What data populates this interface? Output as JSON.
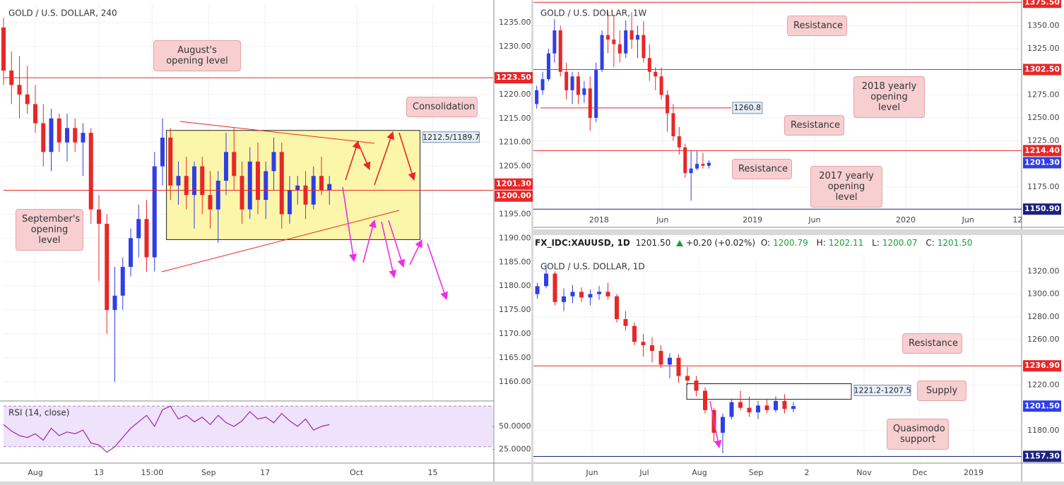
{
  "chart_data": [
    {
      "type": "candlestick",
      "title": "GOLD / U.S. DOLLAR, 240",
      "x": [
        -4,
        -3,
        -2,
        -1,
        0,
        1,
        2,
        3,
        4,
        5,
        6,
        7,
        8,
        9,
        10,
        11,
        12,
        13,
        14,
        15,
        16,
        17,
        18,
        19,
        20,
        21,
        22,
        23,
        24,
        25,
        26,
        27,
        28,
        29,
        30,
        31,
        32,
        33,
        34,
        35,
        36,
        37
      ],
      "open": [
        1234,
        1225,
        1222,
        1220,
        1218,
        1214,
        1208,
        1215,
        1210,
        1213,
        1210,
        1212,
        1196,
        1193,
        1175,
        1178,
        1184,
        1190,
        1194,
        1186,
        1205,
        1211,
        1201,
        1203,
        1199,
        1205,
        1199,
        1196,
        1202,
        1208,
        1203,
        1196,
        1206,
        1198,
        1204,
        1208,
        1195,
        1200,
        1201,
        1197,
        1203,
        1200
      ],
      "high": [
        1236,
        1229,
        1228,
        1226,
        1222,
        1218,
        1217,
        1216,
        1216,
        1215,
        1214,
        1213,
        1199,
        1195,
        1184,
        1186,
        1192,
        1197,
        1198,
        1208,
        1215,
        1213,
        1206,
        1207,
        1206,
        1207,
        1204,
        1204,
        1212,
        1213,
        1206,
        1209,
        1210,
        1206,
        1211,
        1210,
        1203,
        1203,
        1204,
        1205,
        1207,
        1203
      ],
      "low": [
        1222,
        1218,
        1215,
        1216,
        1212,
        1205,
        1204,
        1208,
        1206,
        1208,
        1203,
        1193,
        1181,
        1170,
        1160,
        1175,
        1182,
        1186,
        1183,
        1183,
        1201,
        1198,
        1197,
        1196,
        1192,
        1195,
        1192,
        1189,
        1199,
        1200,
        1193,
        1194,
        1195,
        1194,
        1200,
        1192,
        1193,
        1197,
        1194,
        1196,
        1199,
        1197
      ],
      "close": [
        1225,
        1222,
        1220,
        1218,
        1214,
        1208,
        1215,
        1210,
        1213,
        1210,
        1212,
        1196,
        1193,
        1175,
        1178,
        1184,
        1190,
        1194,
        1186,
        1205,
        1211,
        1201,
        1203,
        1199,
        1205,
        1199,
        1196,
        1202,
        1208,
        1203,
        1196,
        1206,
        1198,
        1204,
        1208,
        1195,
        1200,
        1201,
        1197,
        1203,
        1200,
        1201.3
      ],
      "up_color": "#2f3fe6",
      "down_color": "#e82727",
      "grid": true,
      "xlim": [
        -4,
        57.6
      ],
      "ylim": [
        1156,
        1239
      ],
      "xticks": [
        {
          "value": 0,
          "label": "Aug"
        },
        {
          "value": 8,
          "label": "13"
        },
        {
          "value": 14.7,
          "label": "15:00"
        },
        {
          "value": 21.8,
          "label": "Sep"
        },
        {
          "value": 28.9,
          "label": "17"
        },
        {
          "value": 40.4,
          "label": "Oct"
        },
        {
          "value": 50,
          "label": "15"
        }
      ],
      "yticks": [
        {
          "value": 1235,
          "label": "1235.00"
        },
        {
          "value": 1230,
          "label": "1230.00"
        },
        {
          "value": 1220,
          "label": "1220.00"
        },
        {
          "value": 1215,
          "label": "1215.00"
        },
        {
          "value": 1210,
          "label": "1210.00"
        },
        {
          "value": 1205,
          "label": "1205.00"
        },
        {
          "value": 1195,
          "label": "1195.00"
        },
        {
          "value": 1190,
          "label": "1190.00"
        },
        {
          "value": 1185,
          "label": "1185.00"
        },
        {
          "value": 1180,
          "label": "1180.00"
        },
        {
          "value": 1175,
          "label": "1175.00"
        },
        {
          "value": 1170,
          "label": "1170.00"
        },
        {
          "value": 1165,
          "label": "1165.00"
        },
        {
          "value": 1160,
          "label": "1160.00"
        }
      ],
      "levels": [
        {
          "value": 1223.5,
          "label": "1223.50",
          "color": "#e82727"
        },
        {
          "value": 1201.3,
          "label": "1201.30",
          "color": "#e82727",
          "line": false
        },
        {
          "value": 1200,
          "label": "1200.00",
          "color": "#e82727"
        }
      ],
      "zone": {
        "x": [
          16.5,
          48.4
        ],
        "y": [
          1212.5,
          1189.7
        ],
        "label": "1212.5/1189.7",
        "color": "#fbf59b"
      },
      "annotations": [
        "August's opening level",
        "Consolidation",
        "September's opening level"
      ]
    },
    {
      "type": "line",
      "title": "RSI (14, close)",
      "x": [
        -4,
        -3,
        -2,
        -1,
        0,
        1,
        2,
        3,
        4,
        5,
        6,
        7,
        8,
        9,
        10,
        11,
        12,
        13,
        14,
        15,
        16,
        17,
        18,
        19,
        20,
        21,
        22,
        23,
        24,
        25,
        26,
        27,
        28,
        29,
        30,
        31,
        32,
        33,
        34,
        35,
        36,
        37
      ],
      "values": [
        52,
        45,
        40,
        38,
        42,
        35,
        48,
        40,
        44,
        42,
        46,
        32,
        30,
        22,
        28,
        38,
        48,
        55,
        62,
        50,
        68,
        72,
        58,
        62,
        55,
        60,
        52,
        62,
        54,
        50,
        56,
        66,
        58,
        60,
        54,
        64,
        56,
        50,
        58,
        46,
        50,
        52
      ],
      "color": "#9c27b0",
      "bands": [
        72,
        28
      ],
      "xlim": [
        -4,
        57.6
      ],
      "ylim": [
        11,
        76
      ],
      "yticks": [
        {
          "value": 50,
          "label": "50.0000"
        },
        {
          "value": 25,
          "label": "25.0000"
        }
      ]
    },
    {
      "type": "candlestick",
      "title": "GOLD / U.S. DOLLAR, 1W",
      "x": [
        -21,
        -19,
        -17,
        -15,
        -13,
        -11,
        -9,
        -7,
        -5,
        -3,
        -1,
        1,
        3,
        5,
        7,
        9,
        11,
        13,
        15,
        17,
        19,
        21,
        23,
        25,
        27,
        29,
        31,
        33,
        35,
        37
      ],
      "open": [
        1265,
        1280,
        1292,
        1320,
        1345,
        1300,
        1280,
        1295,
        1275,
        1282,
        1250,
        1302,
        1340,
        1335,
        1330,
        1320,
        1345,
        1335,
        1340,
        1315,
        1300,
        1295,
        1275,
        1255,
        1230,
        1218,
        1190,
        1195,
        1200,
        1198
      ],
      "high": [
        1285,
        1300,
        1325,
        1357,
        1350,
        1310,
        1300,
        1300,
        1290,
        1295,
        1310,
        1345,
        1366,
        1362,
        1345,
        1356,
        1365,
        1350,
        1355,
        1330,
        1305,
        1305,
        1280,
        1265,
        1240,
        1222,
        1215,
        1214,
        1212,
        1204
      ],
      "low": [
        1260,
        1275,
        1290,
        1310,
        1295,
        1270,
        1265,
        1265,
        1266,
        1236,
        1245,
        1300,
        1320,
        1305,
        1310,
        1315,
        1325,
        1315,
        1310,
        1290,
        1280,
        1270,
        1235,
        1225,
        1210,
        1185,
        1160,
        1193,
        1195,
        1195
      ],
      "close": [
        1280,
        1292,
        1320,
        1345,
        1300,
        1280,
        1295,
        1275,
        1282,
        1250,
        1302,
        1340,
        1335,
        1330,
        1320,
        1345,
        1335,
        1340,
        1315,
        1300,
        1295,
        1275,
        1255,
        1230,
        1218,
        1190,
        1195,
        1200,
        1198,
        1201.3
      ],
      "up_color": "#2f3fe6",
      "down_color": "#e82727",
      "grid": true,
      "xlim": [
        -22.1,
        142.1
      ],
      "ylim": [
        1148,
        1378
      ],
      "xticks": [
        {
          "value": 0,
          "label": "2018"
        },
        {
          "value": 21.4,
          "label": "Jun"
        },
        {
          "value": 51.7,
          "label": "2019"
        },
        {
          "value": 72.6,
          "label": "Jun"
        },
        {
          "value": 103.3,
          "label": "2020"
        },
        {
          "value": 124.3,
          "label": "Jun"
        },
        {
          "value": 141,
          "label": "12"
        }
      ],
      "yticks": [
        {
          "value": 1350,
          "label": "1350.00"
        },
        {
          "value": 1325,
          "label": "1325.00"
        },
        {
          "value": 1275,
          "label": "1275.00"
        },
        {
          "value": 1250,
          "label": "1250.00"
        },
        {
          "value": 1225,
          "label": "1225.00"
        },
        {
          "value": 1175,
          "label": "1175.00"
        }
      ],
      "levels": [
        {
          "value": 1375.5,
          "label": "1375.50",
          "color": "#e82727"
        },
        {
          "value": 1302.5,
          "label": "1302.50",
          "color": "#e82727"
        },
        {
          "value": 1260.8,
          "label": "1260.8",
          "color": "#e82727",
          "xrange": [
            -19.8,
            44.5
          ]
        },
        {
          "value": 1214.4,
          "label": "1214.40",
          "color": "#e82727"
        },
        {
          "value": 1201.3,
          "label": "1201.30",
          "color": "#2f3fe6",
          "line": false
        },
        {
          "value": 1150.9,
          "label": "1150.90",
          "color": "#1a237e"
        }
      ],
      "annotations": [
        "Resistance",
        "2018 yearly opening level",
        "Resistance",
        "Resistance",
        "2017 yearly opening level"
      ]
    },
    {
      "type": "candlestick",
      "title": "GOLD / U.S. DOLLAR, 1D",
      "header": {
        "symbol": "FX_IDC:XAUUSD, 1D",
        "last": "1201.50",
        "change": "+0.20 (+0.02%)",
        "ohlc": [
          {
            "label": "O:",
            "value": "1200.79"
          },
          {
            "label": "H:",
            "value": "1202.11"
          },
          {
            "label": "L:",
            "value": "1200.07"
          },
          {
            "label": "C:",
            "value": "1201.50"
          }
        ]
      },
      "x": [
        -31,
        -26,
        -21,
        -16,
        -11,
        -6,
        -1,
        4,
        9,
        14,
        19,
        24,
        29,
        34,
        39,
        44,
        49,
        54,
        59,
        64,
        69,
        74,
        79,
        84,
        89,
        94,
        99,
        104,
        109,
        114
      ],
      "open": [
        1300,
        1307,
        1318,
        1293,
        1298,
        1302,
        1297,
        1300,
        1302,
        1298,
        1278,
        1272,
        1258,
        1255,
        1250,
        1238,
        1244,
        1228,
        1224,
        1215,
        1198,
        1178,
        1192,
        1205,
        1200,
        1196,
        1202,
        1198,
        1206,
        1199
      ],
      "high": [
        1310,
        1326,
        1320,
        1305,
        1308,
        1306,
        1304,
        1307,
        1310,
        1300,
        1285,
        1275,
        1265,
        1262,
        1255,
        1248,
        1247,
        1236,
        1228,
        1218,
        1200,
        1195,
        1208,
        1215,
        1210,
        1206,
        1208,
        1210,
        1212,
        1205
      ],
      "low": [
        1296,
        1305,
        1290,
        1285,
        1292,
        1293,
        1290,
        1295,
        1295,
        1275,
        1268,
        1255,
        1245,
        1240,
        1235,
        1226,
        1222,
        1220,
        1210,
        1195,
        1170,
        1160,
        1190,
        1198,
        1192,
        1190,
        1195,
        1196,
        1195,
        1196
      ],
      "close": [
        1307,
        1318,
        1293,
        1298,
        1302,
        1297,
        1300,
        1302,
        1298,
        1278,
        1272,
        1258,
        1255,
        1250,
        1238,
        1244,
        1228,
        1224,
        1215,
        1198,
        1178,
        1192,
        1205,
        1200,
        1196,
        1202,
        1198,
        1206,
        1199,
        1201.5
      ],
      "up_color": "#2f3fe6",
      "down_color": "#e82727",
      "grid": true,
      "xlim": [
        -33.2,
        242.8
      ],
      "ylim": [
        1152,
        1332
      ],
      "xticks": [
        {
          "value": 0,
          "label": "Jun"
        },
        {
          "value": 29.6,
          "label": "Jul"
        },
        {
          "value": 60.8,
          "label": "Aug"
        },
        {
          "value": 92.8,
          "label": "Sep"
        },
        {
          "value": 121.6,
          "label": "2"
        },
        {
          "value": 154,
          "label": "Nov"
        },
        {
          "value": 185.6,
          "label": "Dec"
        },
        {
          "value": 216,
          "label": "2019"
        }
      ],
      "yticks": [
        {
          "value": 1320,
          "label": "1320.00"
        },
        {
          "value": 1300,
          "label": "1300.00"
        },
        {
          "value": 1280,
          "label": "1280.00"
        },
        {
          "value": 1260,
          "label": "1260.00"
        },
        {
          "value": 1220,
          "label": "1220.00"
        },
        {
          "value": 1180,
          "label": "1180.00"
        }
      ],
      "levels": [
        {
          "value": 1236.9,
          "label": "1236.90",
          "color": "#e82727"
        },
        {
          "value": 1201.5,
          "label": "1201.50",
          "color": "#2f3fe6",
          "line": false
        },
        {
          "value": 1157.3,
          "label": "1157.30",
          "color": "#1a237e"
        }
      ],
      "zone": {
        "x": [
          53.6,
          146.8
        ],
        "y": [
          1221.2,
          1207.5
        ],
        "label": "1221.2-1207.5",
        "color": "none"
      },
      "annotations": [
        "Resistance",
        "Supply",
        "Quasimodo support"
      ]
    }
  ]
}
